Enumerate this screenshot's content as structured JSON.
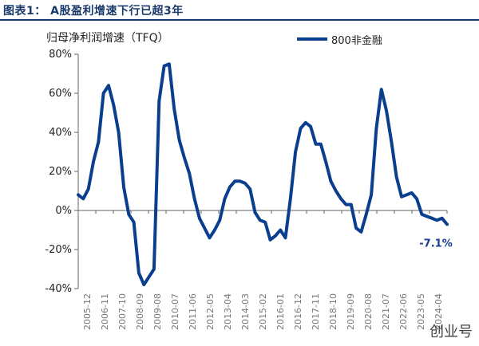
{
  "header": {
    "title": "图表1：  A股盈利增速下行已超3年"
  },
  "watermark": "创业号",
  "chart_data": {
    "type": "line",
    "title": "图表1：  A股盈利增速下行已超3年",
    "ylabel": "归母净利润增速（TFQ）",
    "xlabel": "",
    "ylim": [
      -40,
      80
    ],
    "yticks": [
      -40,
      -20,
      0,
      20,
      40,
      60,
      80
    ],
    "ytick_labels": [
      "-40%",
      "-20%",
      "0%",
      "20%",
      "40%",
      "60%",
      "80%"
    ],
    "xtick_labels": [
      "2005-12",
      "2006-11",
      "2007-10",
      "2008-09",
      "2009-08",
      "2010-07",
      "2011-06",
      "2012-05",
      "2013-04",
      "2014-03",
      "2015-02",
      "2016-01",
      "2016-12",
      "2017-11",
      "2018-10",
      "2019-09",
      "2020-08",
      "2021-07",
      "2022-06",
      "2023-05",
      "2024-04"
    ],
    "legend_position": "top-right",
    "series": [
      {
        "name": "800非金融",
        "color": "#0a3e8f",
        "values": [
          8,
          6,
          11,
          25,
          35,
          60,
          64,
          54,
          40,
          12,
          -2,
          -6,
          -32,
          -38,
          -34,
          -30,
          56,
          74,
          75,
          52,
          36,
          27,
          19,
          6,
          -4,
          -9,
          -14,
          -10,
          -5,
          6,
          12,
          15,
          15,
          14,
          11,
          -1,
          -5,
          -6,
          -15,
          -13,
          -10,
          -14,
          6,
          30,
          42,
          45,
          43,
          34,
          34,
          25,
          15,
          10,
          6,
          3,
          3,
          -9,
          -11,
          -2,
          8,
          42,
          62,
          51,
          35,
          17,
          7,
          8,
          9,
          6,
          -2,
          -3,
          -4,
          -5,
          -4,
          -7.1
        ]
      }
    ],
    "annotations": [
      {
        "text": "-7.1%"
      }
    ]
  }
}
